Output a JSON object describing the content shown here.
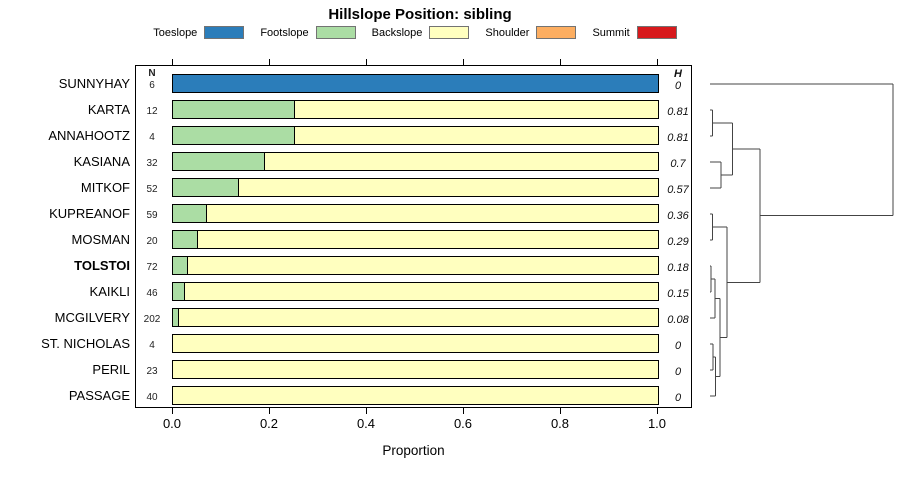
{
  "title": "Hillslope Position: sibling",
  "legend": {
    "items": [
      {
        "label": "Toeslope",
        "color": "#2b7dba"
      },
      {
        "label": "Footslope",
        "color": "#abdda4"
      },
      {
        "label": "Backslope",
        "color": "#ffffbf"
      },
      {
        "label": "Shoulder",
        "color": "#fdae61"
      },
      {
        "label": "Summit",
        "color": "#d7191c"
      }
    ]
  },
  "table": {
    "n_header": "N",
    "h_header": "H"
  },
  "axis": {
    "label": "Proportion",
    "ticks": [
      "0.0",
      "0.2",
      "0.4",
      "0.6",
      "0.8",
      "1.0"
    ],
    "tick_values": [
      0,
      0.2,
      0.4,
      0.6,
      0.8,
      1.0
    ]
  },
  "chart_data": {
    "type": "bar",
    "orientation": "horizontal-stacked",
    "title": "Hillslope Position: sibling",
    "xlabel": "Proportion",
    "xlim": [
      0,
      1
    ],
    "categories": [
      "SUNNYHAY",
      "KARTA",
      "ANNAHOOTZ",
      "KASIANA",
      "MITKOF",
      "KUPREANOF",
      "MOSMAN",
      "TOLSTOI",
      "KAIKLI",
      "MCGILVERY",
      "ST. NICHOLAS",
      "PERIL",
      "PASSAGE"
    ],
    "bold_category": "TOLSTOI",
    "n_values": [
      "6",
      "12",
      "4",
      "32",
      "52",
      "59",
      "20",
      "72",
      "46",
      "202",
      "4",
      "23",
      "40"
    ],
    "h_values": [
      "0",
      "0.81",
      "0.81",
      "0.7",
      "0.57",
      "0.36",
      "0.29",
      "0.18",
      "0.15",
      "0.08",
      "0",
      "0",
      "0"
    ],
    "series": [
      {
        "name": "Toeslope",
        "values": [
          1,
          0,
          0,
          0,
          0,
          0,
          0,
          0,
          0,
          0,
          0,
          0,
          0
        ]
      },
      {
        "name": "Footslope",
        "values": [
          0,
          0.25,
          0.25,
          0.188,
          0.135,
          0.068,
          0.05,
          0.028,
          0.022,
          0.01,
          0,
          0,
          0
        ]
      },
      {
        "name": "Backslope",
        "values": [
          0,
          0.75,
          0.75,
          0.812,
          0.865,
          0.932,
          0.95,
          0.972,
          0.978,
          0.99,
          1,
          1,
          1
        ]
      },
      {
        "name": "Shoulder",
        "values": [
          0,
          0,
          0,
          0,
          0,
          0,
          0,
          0,
          0,
          0,
          0,
          0,
          0
        ]
      },
      {
        "name": "Summit",
        "values": [
          0,
          0,
          0,
          0,
          0,
          0,
          0,
          0,
          0,
          0,
          0,
          0,
          0
        ]
      }
    ],
    "dendrogram": {
      "leaves": [
        "SUNNYHAY",
        "KARTA",
        "ANNAHOOTZ",
        "KASIANA",
        "MITKOF",
        "KUPREANOF",
        "MOSMAN",
        "TOLSTOI",
        "KAIKLI",
        "MCGILVERY",
        "ST. NICHOLAS",
        "PERIL",
        "PASSAGE"
      ],
      "merges": [
        {
          "id": "N1",
          "a": "L1",
          "b": "L2",
          "h": 0.015
        },
        {
          "id": "N2",
          "a": "L3",
          "b": "L4",
          "h": 0.06
        },
        {
          "id": "N3",
          "a": "N1",
          "b": "N2",
          "h": 0.123
        },
        {
          "id": "N4",
          "a": "L5",
          "b": "L6",
          "h": 0.015
        },
        {
          "id": "N5",
          "a": "L7",
          "b": "L8",
          "h": 0.005
        },
        {
          "id": "N6",
          "a": "N5",
          "b": "L9",
          "h": 0.028
        },
        {
          "id": "N7",
          "a": "L10",
          "b": "L11",
          "h": 0.017
        },
        {
          "id": "N8",
          "a": "N7",
          "b": "L12",
          "h": 0.031
        },
        {
          "id": "N9",
          "a": "N6",
          "b": "N8",
          "h": 0.056
        },
        {
          "id": "N10",
          "a": "N4",
          "b": "N9",
          "h": 0.094
        },
        {
          "id": "N11",
          "a": "N3",
          "b": "N10",
          "h": 0.274
        },
        {
          "id": "N12",
          "a": "L0",
          "b": "N11",
          "h": 1.0
        }
      ]
    }
  }
}
